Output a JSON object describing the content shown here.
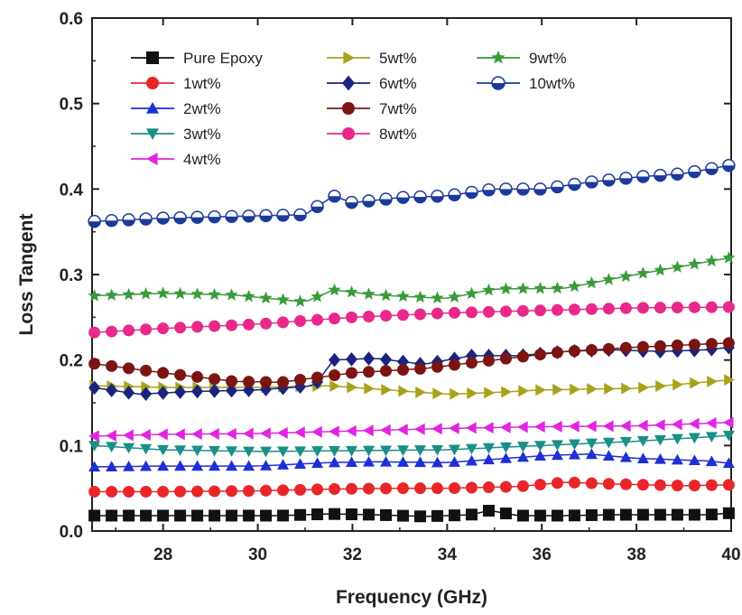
{
  "chart_data": {
    "type": "scatter",
    "xlabel": "Frequency (GHz)",
    "ylabel": "Loss Tangent",
    "xlim": [
      26.5,
      40
    ],
    "ylim": [
      0.0,
      0.6
    ],
    "xticks": [
      "28",
      "30",
      "32",
      "34",
      "36",
      "38",
      "40"
    ],
    "yticks": [
      "0.0",
      "0.1",
      "0.2",
      "0.3",
      "0.4",
      "0.5",
      "0.6"
    ],
    "legend_position": "top-left",
    "series": [
      {
        "name": "Pure Epoxy",
        "marker": "square",
        "color": "#111111",
        "x": [
          26.5,
          27.5,
          28.5,
          29.5,
          30.5,
          31.5,
          32.5,
          33.5,
          34.5,
          34.9,
          35.5,
          36.5,
          37.5,
          38.5,
          39.5,
          40
        ],
        "y": [
          0.018,
          0.018,
          0.018,
          0.018,
          0.018,
          0.02,
          0.019,
          0.017,
          0.019,
          0.024,
          0.018,
          0.018,
          0.019,
          0.019,
          0.019,
          0.021
        ]
      },
      {
        "name": "1wt%",
        "marker": "circle",
        "color": "#e8262a",
        "x": [
          26.5,
          28,
          30,
          31.5,
          33,
          34,
          35.5,
          36.5,
          37.5,
          39,
          40
        ],
        "y": [
          0.046,
          0.046,
          0.047,
          0.049,
          0.05,
          0.05,
          0.052,
          0.057,
          0.055,
          0.053,
          0.054
        ]
      },
      {
        "name": "2wt%",
        "marker": "triangle-up",
        "color": "#1f2fd6",
        "x": [
          26.5,
          28,
          30,
          31.5,
          32.5,
          34,
          36,
          37,
          38,
          39.5,
          40
        ],
        "y": [
          0.075,
          0.076,
          0.076,
          0.08,
          0.081,
          0.08,
          0.088,
          0.09,
          0.085,
          0.082,
          0.079
        ]
      },
      {
        "name": "3wt%",
        "marker": "triangle-down",
        "color": "#1a8f86",
        "x": [
          26.5,
          28,
          30,
          32,
          34,
          36,
          38,
          39.5,
          40
        ],
        "y": [
          0.1,
          0.095,
          0.093,
          0.094,
          0.095,
          0.1,
          0.105,
          0.11,
          0.112
        ]
      },
      {
        "name": "4wt%",
        "marker": "triangle-left",
        "color": "#e025e0",
        "x": [
          26.5,
          28,
          30,
          32,
          34,
          36,
          38,
          40
        ],
        "y": [
          0.111,
          0.113,
          0.114,
          0.117,
          0.12,
          0.122,
          0.123,
          0.127
        ]
      },
      {
        "name": "5wt%",
        "marker": "triangle-right",
        "color": "#a8a21a",
        "x": [
          26.5,
          28,
          30,
          31.5,
          32.5,
          34,
          35,
          36,
          38,
          40
        ],
        "y": [
          0.17,
          0.168,
          0.168,
          0.17,
          0.166,
          0.16,
          0.162,
          0.165,
          0.167,
          0.177
        ]
      },
      {
        "name": "6wt%",
        "marker": "diamond",
        "color": "#1a237e",
        "x": [
          26.5,
          27.5,
          28.5,
          30,
          31.2,
          31.6,
          32.5,
          33.5,
          34.5,
          35.5,
          36.5,
          37.5,
          38.5,
          39.5,
          40
        ],
        "y": [
          0.168,
          0.16,
          0.163,
          0.165,
          0.17,
          0.2,
          0.202,
          0.195,
          0.205,
          0.205,
          0.21,
          0.212,
          0.21,
          0.212,
          0.215
        ]
      },
      {
        "name": "7wt%",
        "marker": "circle",
        "color": "#7a1512",
        "x": [
          26.5,
          28,
          29.5,
          30.5,
          32,
          33.5,
          35,
          36.5,
          38,
          40
        ],
        "y": [
          0.196,
          0.185,
          0.175,
          0.174,
          0.185,
          0.19,
          0.2,
          0.21,
          0.215,
          0.22
        ]
      },
      {
        "name": "8wt%",
        "marker": "circle",
        "color": "#e8288a",
        "x": [
          26.5,
          28,
          30,
          32,
          34,
          36,
          38,
          40
        ],
        "y": [
          0.232,
          0.237,
          0.242,
          0.25,
          0.255,
          0.258,
          0.261,
          0.262
        ]
      },
      {
        "name": "9wt%",
        "marker": "star",
        "color": "#3a9a3a",
        "x": [
          26.5,
          28,
          29.5,
          31,
          31.6,
          32.5,
          34,
          35,
          36.5,
          37.5,
          38.5,
          39.5,
          40
        ],
        "y": [
          0.275,
          0.278,
          0.276,
          0.268,
          0.282,
          0.276,
          0.272,
          0.283,
          0.284,
          0.295,
          0.305,
          0.315,
          0.32
        ]
      },
      {
        "name": "10wt%",
        "marker": "circle-half",
        "color": "#1c3a9c",
        "x": [
          26.5,
          28,
          29.5,
          31,
          31.6,
          32,
          33,
          34,
          35,
          36,
          37,
          38,
          39,
          40
        ],
        "y": [
          0.362,
          0.366,
          0.368,
          0.37,
          0.392,
          0.384,
          0.39,
          0.392,
          0.4,
          0.4,
          0.408,
          0.414,
          0.418,
          0.428
        ]
      }
    ]
  }
}
